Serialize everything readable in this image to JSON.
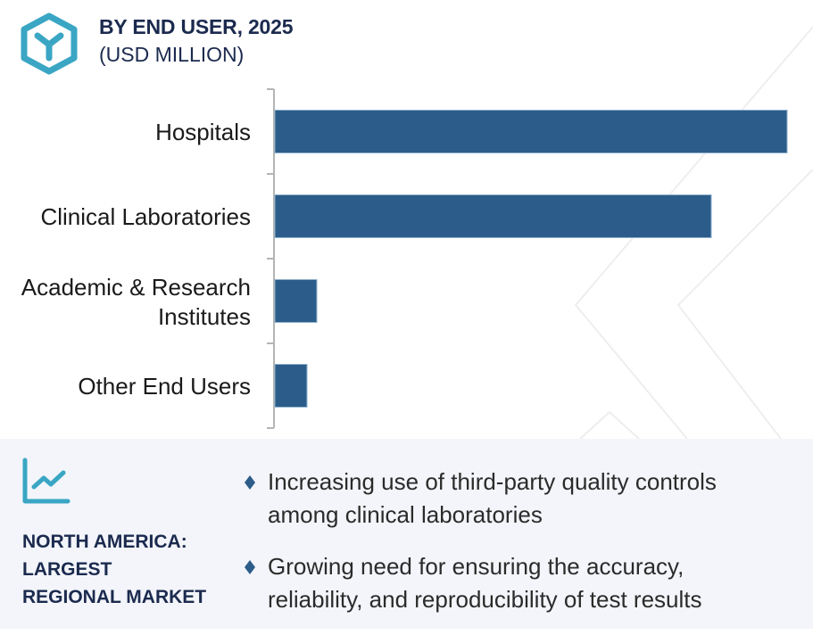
{
  "header": {
    "title": "BY END USER, 2025",
    "subtitle": "(USD MILLION)",
    "logo_icon": "hexagon-y-logo-icon"
  },
  "colors": {
    "bar": "#2c5d8a",
    "accent": "#3aa6c4",
    "title": "#1b2a4e",
    "panel_bg": "#f3f5fa"
  },
  "chart_data": {
    "type": "bar",
    "orientation": "horizontal",
    "title": "BY END USER, 2025",
    "subtitle": "(USD MILLION)",
    "xlabel": "",
    "ylabel": "",
    "categories": [
      "Hospitals",
      "Clinical Laboratories",
      "Academic & Research Institutes",
      "Other End Users"
    ],
    "category_lines": [
      [
        "Hospitals"
      ],
      [
        "Clinical Laboratories"
      ],
      [
        "Academic & Research",
        "Institutes"
      ],
      [
        "Other End Users"
      ]
    ],
    "values": [
      574,
      489,
      47,
      36
    ],
    "value_units": "relative (no value axis shown; estimated from bar lengths)",
    "xlim": [
      0,
      600
    ],
    "grid": false,
    "legend": "none"
  },
  "panel": {
    "icon": "trend-chart-icon",
    "region_lines": [
      "NORTH AMERICA:",
      "LARGEST",
      "REGIONAL MARKET"
    ],
    "bullets": [
      {
        "lines": [
          "Increasing use of third-party quality controls",
          "among clinical laboratories"
        ]
      },
      {
        "lines": [
          "Growing need for ensuring the accuracy,",
          "reliability, and reproducibility of test results"
        ]
      }
    ]
  }
}
